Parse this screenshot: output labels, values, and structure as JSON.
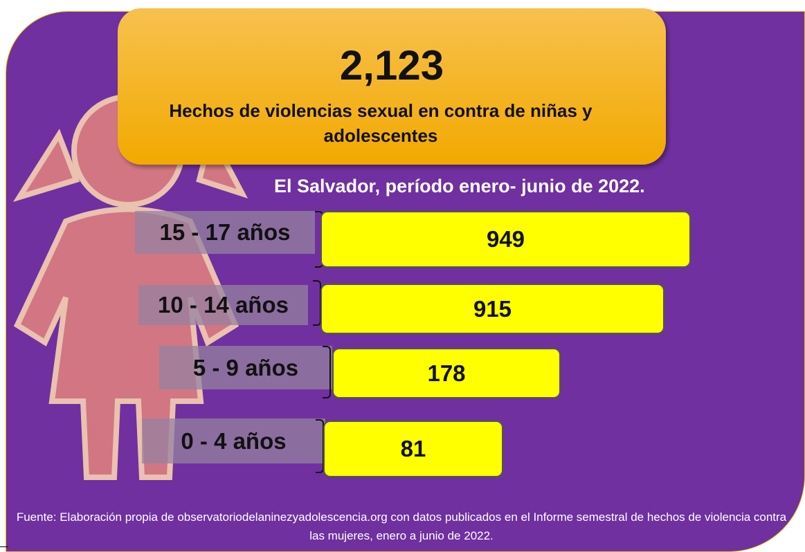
{
  "header": {
    "total": "2,123",
    "title": "Hechos de violencias sexual en contra de niñas y adolescentes",
    "subtitle": "El Salvador, período enero-  junio de 2022."
  },
  "rows": [
    {
      "label": "15 - 17 años",
      "value": 949
    },
    {
      "label": "10 - 14 años",
      "value": 915
    },
    {
      "label": "5 - 9 años",
      "value": 178
    },
    {
      "label": "0 - 4 años",
      "value": 81
    }
  ],
  "source": "Fuente: Elaboración propia de observatoriodelaninezyadolescencia.org con datos publicados en el Informe semestral de hechos de violencia contra las mujeres, enero a junio de 2022."
}
